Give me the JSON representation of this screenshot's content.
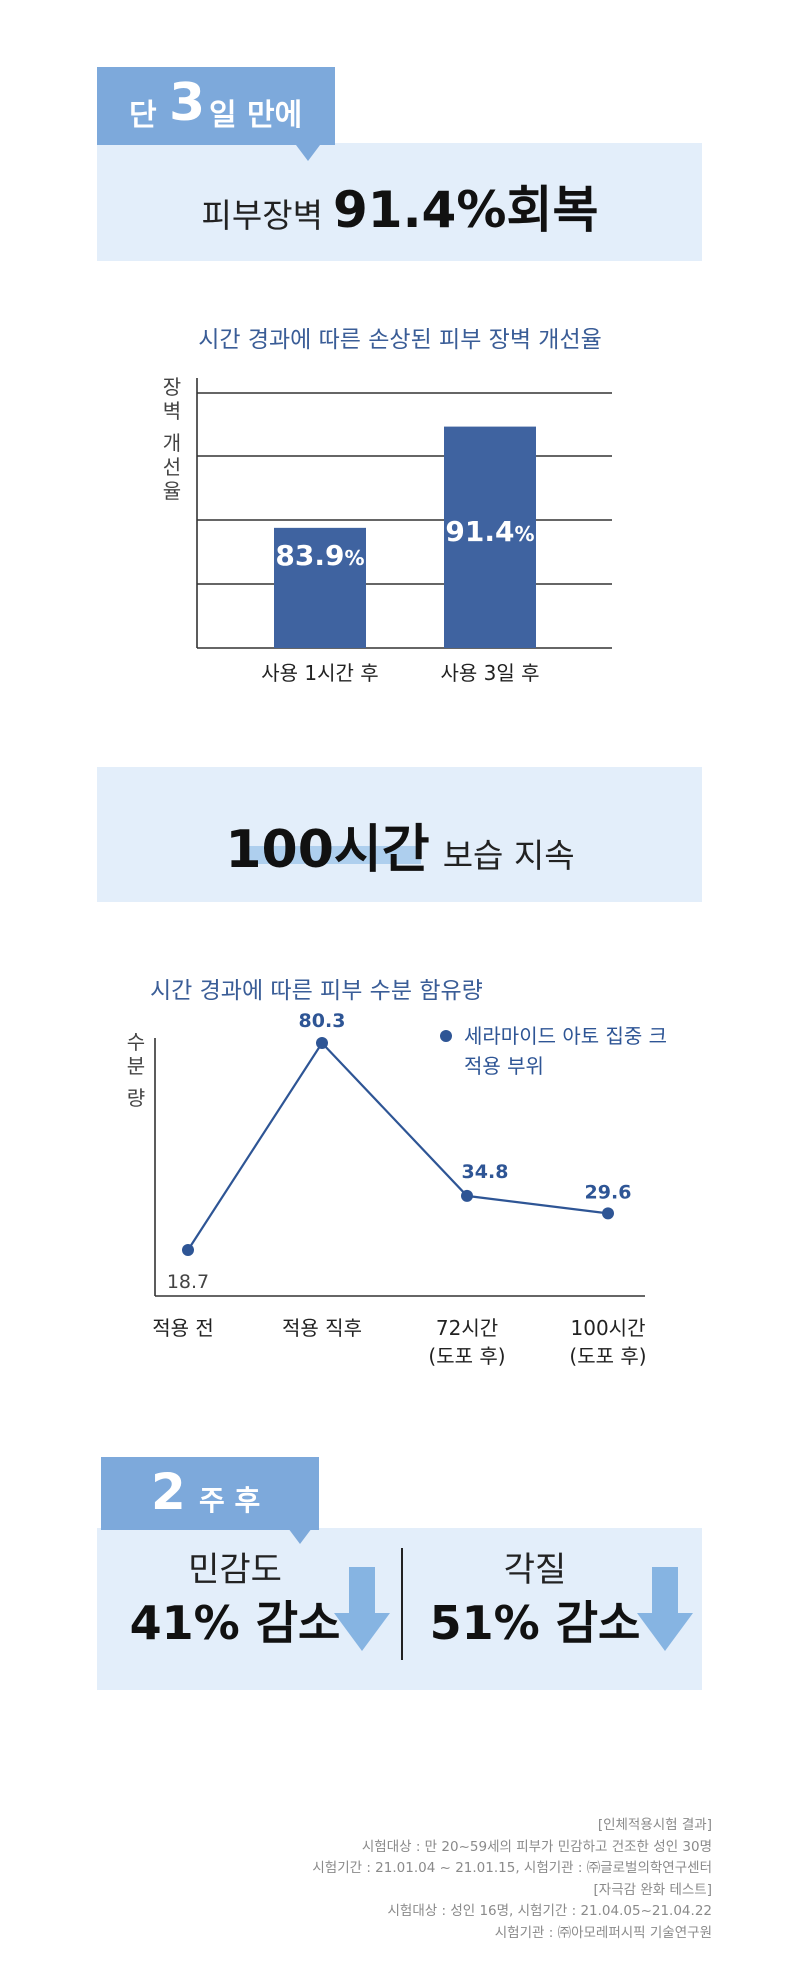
{
  "section1": {
    "tag": {
      "prefix": "단",
      "number": "3",
      "suffix": "일 만에"
    },
    "headline": {
      "label": "피부장벽",
      "value": "91.4%회복"
    }
  },
  "section2": {
    "headline": {
      "value": "100시간",
      "label": "보습 지속"
    }
  },
  "section3": {
    "tag": {
      "number": "2",
      "suffix": "주 후"
    },
    "left": {
      "label": "민감도",
      "value": "41% 감소",
      "icon": "down-arrow-icon"
    },
    "right": {
      "label": "각질",
      "value": "51% 감소",
      "icon": "down-arrow-icon"
    }
  },
  "footnote": [
    "[인체적용시험 결과]",
    "시험대상 : 만 20~59세의 피부가 민감하고 건조한 성인 30명",
    "시험기간 : 21.01.04 ~ 21.01.15, 시험기관 : ㈜글로벌의학연구센터",
    "[자극감 완화 테스트]",
    "시험대상 : 성인 16명,  시험기간 : 21.04.05~21.04.22",
    "시험기관 : ㈜아모레퍼시픽 기술연구원"
  ],
  "colors": {
    "panel_bg": "#e3eefa",
    "tag_bg": "#7da9db",
    "bar": "#3f63a0",
    "line": "#2e5595",
    "chart_title": "#3a5d97",
    "arrow": "#86b4e2"
  },
  "chart_data": [
    {
      "type": "bar",
      "title": "시간 경과에 따른 손상된 피부 장벽 개선율",
      "ylabel": "장벽 개선율",
      "categories": [
        "사용 1시간 후",
        "사용 3일 후"
      ],
      "values": [
        83.9,
        91.4
      ],
      "value_labels": [
        "83.9%",
        "91.4%"
      ],
      "grid": true
    },
    {
      "type": "line",
      "title": "시간 경과에 따른 피부 수분 함유량",
      "ylabel": "수분량",
      "categories": [
        "적용 전",
        "적용 직후",
        "72시간\n(도포 후)",
        "100시간\n(도포 후)"
      ],
      "series": [
        {
          "name": "세라마이드 아토 집중 크림 적용 부위",
          "values": [
            18.7,
            80.3,
            34.8,
            29.6
          ]
        }
      ],
      "legend": "top-right",
      "grid": false
    }
  ]
}
